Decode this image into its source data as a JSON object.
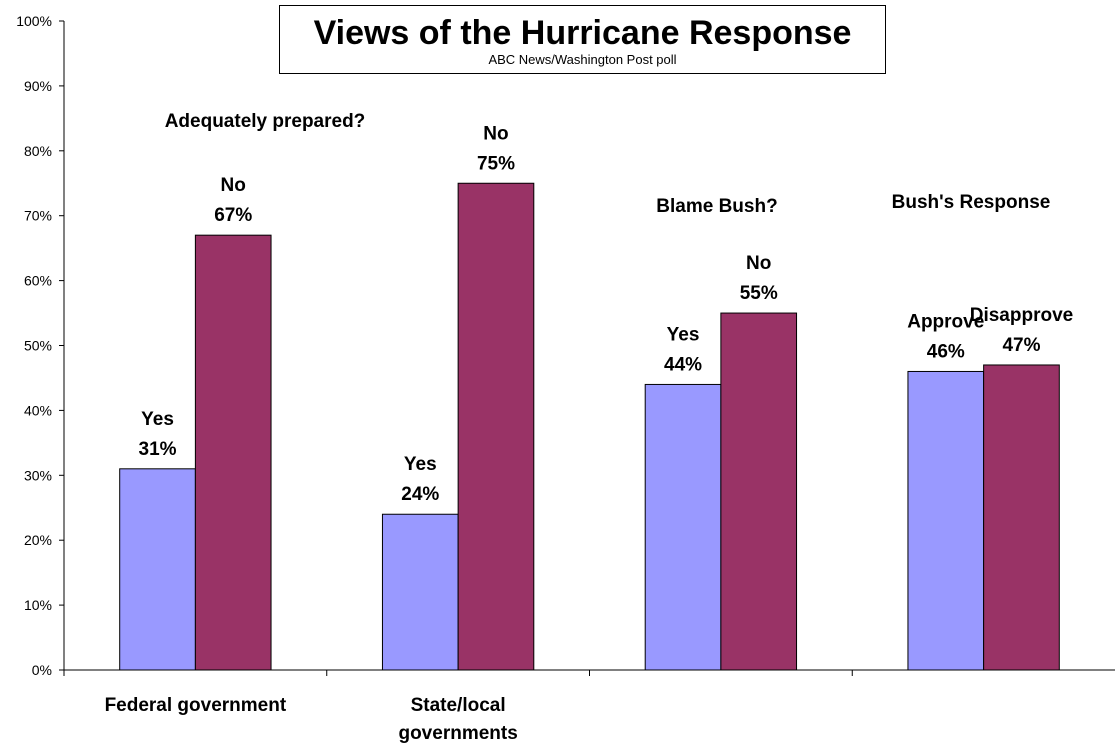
{
  "chart_data": {
    "type": "bar",
    "title": "Views of the Hurricane Response",
    "subtitle": "ABC News/Washington Post poll",
    "ylim": [
      0,
      100
    ],
    "yticks": [
      "0%",
      "10%",
      "20%",
      "30%",
      "40%",
      "50%",
      "60%",
      "70%",
      "80%",
      "90%",
      "100%"
    ],
    "categories": [
      "Federal government",
      "State/local governments",
      "",
      ""
    ],
    "group_labels": [
      "Adequately prepared?",
      "Blame Bush?",
      "Bush's Response"
    ],
    "series": [
      {
        "values": [
          31,
          24,
          44,
          46
        ],
        "color": "#9999ff",
        "labels": [
          [
            "Yes",
            "31%"
          ],
          [
            "Yes",
            "24%"
          ],
          [
            "Yes",
            "44%"
          ],
          [
            "Approve",
            "46%"
          ]
        ]
      },
      {
        "values": [
          67,
          75,
          55,
          47
        ],
        "color": "#993366",
        "labels": [
          [
            "No",
            "67%"
          ],
          [
            "No",
            "75%"
          ],
          [
            "No",
            "55%"
          ],
          [
            "Disapprove",
            "47%"
          ]
        ]
      }
    ],
    "grid": false,
    "legend": "none"
  }
}
